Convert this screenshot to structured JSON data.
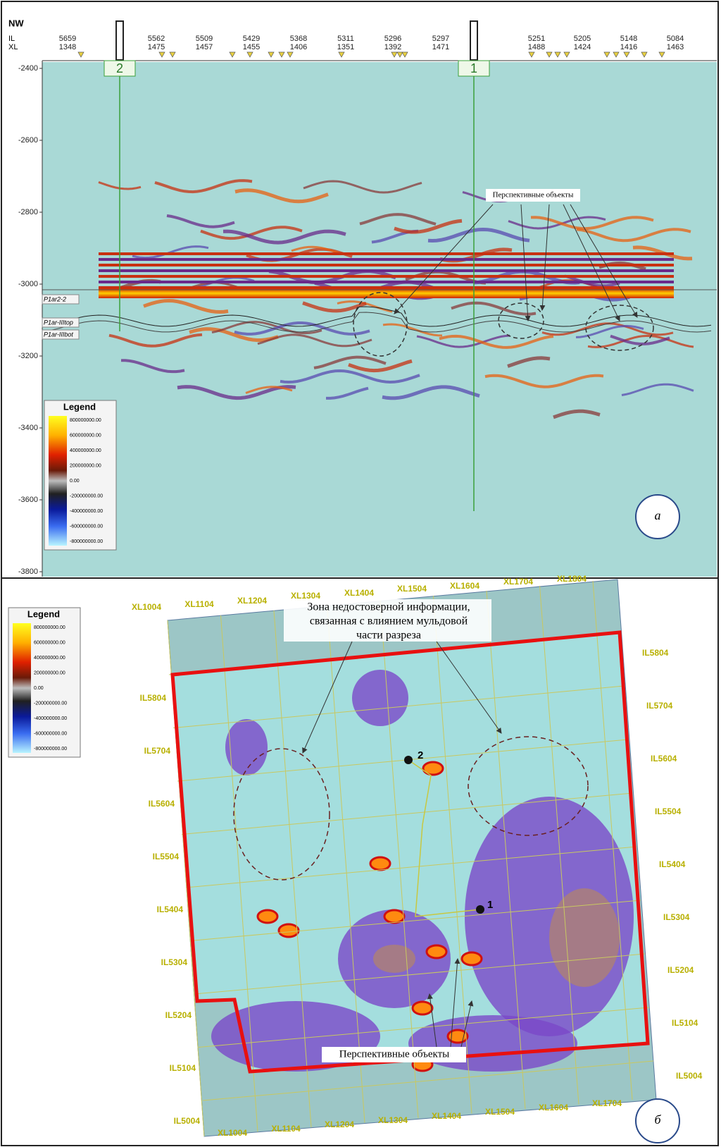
{
  "panel_a": {
    "letter": "а",
    "orientation": "NW",
    "il_label": "IL",
    "xl_label": "XL",
    "traces": [
      {
        "il": 5659,
        "xl": 1348
      },
      {
        "il": 5562,
        "xl": 1475
      },
      {
        "il": 5509,
        "xl": 1457
      },
      {
        "il": 5429,
        "xl": 1455
      },
      {
        "il": 5368,
        "xl": 1406
      },
      {
        "il": 5311,
        "xl": 1351
      },
      {
        "il": 5296,
        "xl": 1392
      },
      {
        "il": 5297,
        "xl": 1471
      },
      {
        "il": 5251,
        "xl": 1488
      },
      {
        "il": 5205,
        "xl": 1424
      },
      {
        "il": 5148,
        "xl": 1416
      },
      {
        "il": 5084,
        "xl": 1463
      }
    ],
    "depth_ticks": [
      -2400,
      -2600,
      -2800,
      -3000,
      -3200,
      -3400,
      -3600,
      -3800
    ],
    "wells": [
      "2",
      "1"
    ],
    "horizons": [
      "P1ar2-2",
      "P1ar-IIItop",
      "P1ar-IIIbot"
    ],
    "annotation": "Перспективные объекты",
    "legend": {
      "title": "Legend",
      "labels": [
        "800000000.00",
        "600000000.00",
        "400000000.00",
        "200000000.00",
        "0.00",
        "-200000000.00",
        "-400000000.00",
        "-600000000.00",
        "-800000000.00"
      ]
    }
  },
  "panel_b": {
    "letter": "б",
    "xl_top": [
      "XL1004",
      "XL1104",
      "XL1204",
      "XL1304",
      "XL1404",
      "XL1504",
      "XL1604",
      "XL1704",
      "XL1804"
    ],
    "xl_bottom": [
      "XL1004",
      "XL1104",
      "XL1204",
      "XL1304",
      "XL1404",
      "XL1504",
      "XL1604",
      "XL1704"
    ],
    "il_left": [
      "IL5804",
      "IL5704",
      "IL5604",
      "IL5504",
      "IL5404",
      "IL5304",
      "IL5204",
      "IL5104",
      "IL5004"
    ],
    "il_right": [
      "IL5804",
      "IL5704",
      "IL5604",
      "IL5504",
      "IL5404",
      "IL5304",
      "IL5204",
      "IL5104",
      "IL5004"
    ],
    "annotation_zone": [
      "Зона недостоверной информации,",
      "связанная с влиянием мульдовой",
      "части разреза"
    ],
    "annotation_objects": "Перспективные объекты",
    "wells": [
      "2",
      "1"
    ],
    "legend": {
      "title": "Legend",
      "labels": [
        "800000000.00",
        "600000000.00",
        "400000000.00",
        "200000000.00",
        "0.00",
        "-200000000.00",
        "-400000000.00",
        "-600000000.00",
        "-800000000.00"
      ]
    }
  }
}
